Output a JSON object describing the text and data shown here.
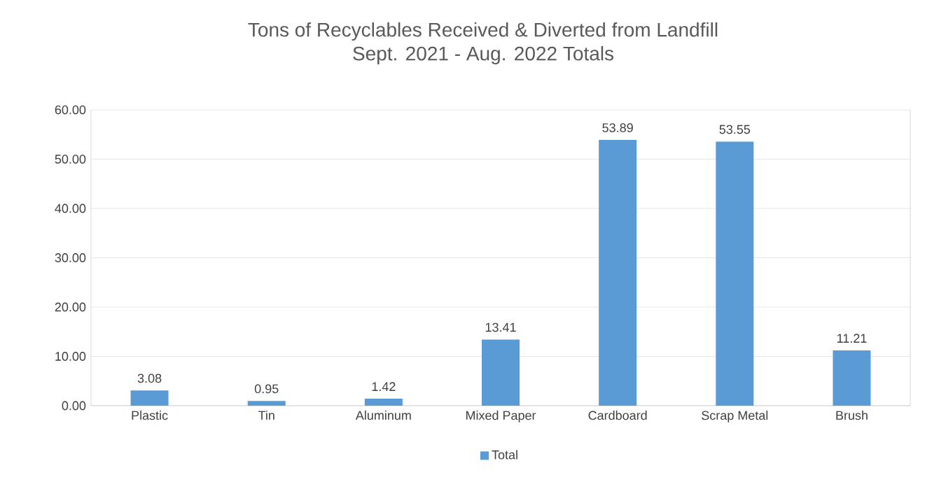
{
  "chart_data": {
    "type": "bar",
    "title": "Tons of Recyclables Received & Diverted from Landfill",
    "subtitle": "Sept. 2021 - Aug. 2022 Totals",
    "categories": [
      "Plastic",
      "Tin",
      "Aluminum",
      "Mixed Paper",
      "Cardboard",
      "Scrap Metal",
      "Brush"
    ],
    "series": [
      {
        "name": "Total",
        "color": "#5b9bd5",
        "values": [
          3.08,
          0.95,
          1.42,
          13.41,
          53.89,
          53.55,
          11.21
        ]
      }
    ],
    "ylim": [
      0,
      60
    ],
    "yticks": [
      {
        "value": 0,
        "label": "0.00"
      },
      {
        "value": 10,
        "label": "10.00"
      },
      {
        "value": 20,
        "label": "20.00"
      },
      {
        "value": 30,
        "label": "30.00"
      },
      {
        "value": 40,
        "label": "40.00"
      },
      {
        "value": 50,
        "label": "50.00"
      },
      {
        "value": 60,
        "label": "60.00"
      }
    ],
    "grid": "y",
    "legend": "bottom",
    "data_labels": true
  }
}
